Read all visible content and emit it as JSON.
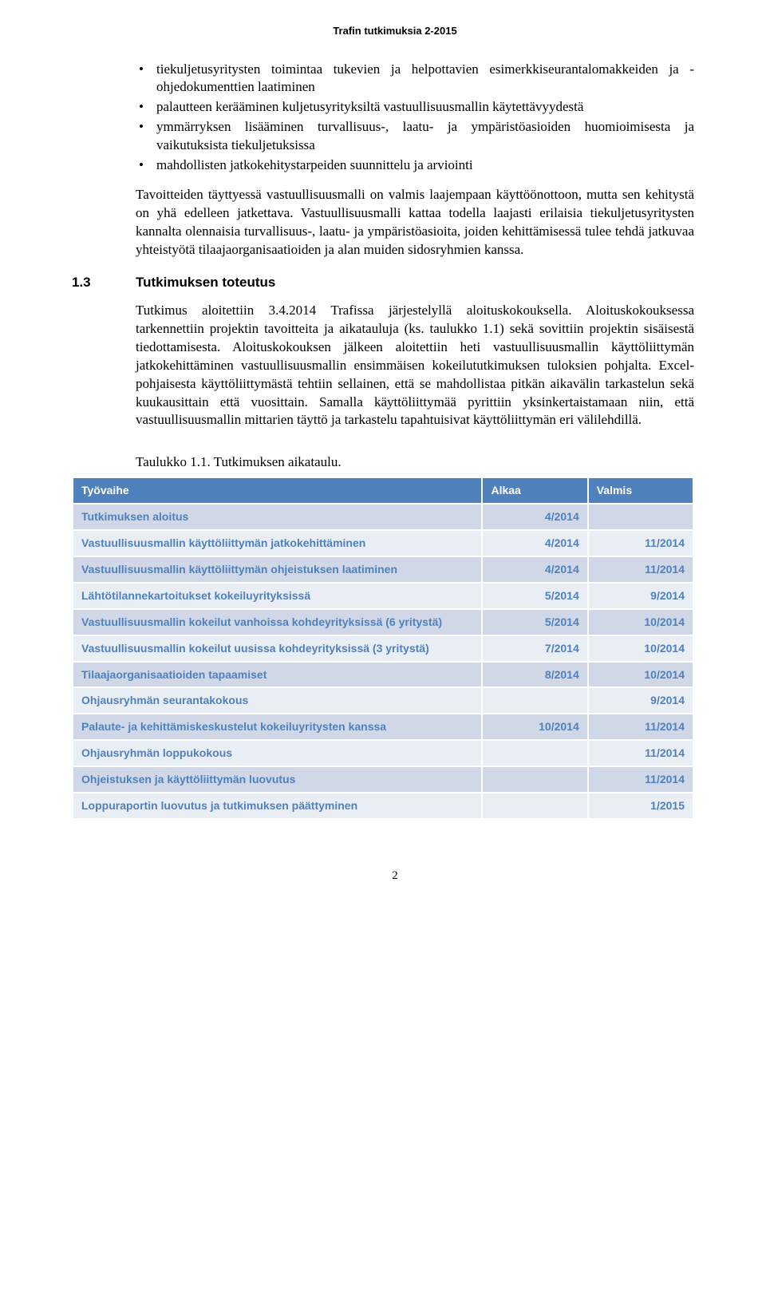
{
  "header": "Trafin tutkimuksia 2-2015",
  "bullets": [
    "tiekuljetusyritysten toimintaa tukevien ja helpottavien esimerkkiseurantalomakkeiden ja -ohjedokumenttien laatiminen",
    "palautteen kerääminen kuljetusyrityksiltä vastuullisuusmallin käytettävyydestä",
    "ymmärryksen lisääminen turvallisuus-, laatu- ja ympäristöasioiden huomioimisesta ja vaikutuksista tiekuljetuksissa",
    "mahdollisten jatkokehitystarpeiden suunnittelu ja arviointi"
  ],
  "para1": "Tavoitteiden täyttyessä vastuullisuusmalli on valmis laajempaan käyttöönottoon, mutta sen kehitystä on yhä edelleen jatkettava. Vastuullisuusmalli kattaa todella laajasti erilaisia tiekuljetusyritysten kannalta olennaisia turvallisuus-, laatu- ja ympäristöasioita, joiden kehittämisessä tulee tehdä jatkuvaa yhteistyötä tilaajaorganisaatioiden ja alan muiden sidosryhmien kanssa.",
  "section": {
    "num": "1.3",
    "title": "Tutkimuksen toteutus"
  },
  "para2": "Tutkimus aloitettiin 3.4.2014 Trafissa järjestelyllä aloituskokouksella. Aloituskokouksessa tarkennettiin projektin tavoitteita ja aikatauluja (ks. taulukko 1.1) sekä sovittiin projektin sisäisestä tiedottamisesta. Aloituskokouksen jälkeen aloitettiin heti vastuullisuusmallin käyttöliittymän jatkokehittäminen vastuullisuusmallin ensimmäisen kokeilututkimuksen tuloksien pohjalta. Excel-pohjaisesta käyttöliittymästä tehtiin sellainen, että se mahdollistaa pitkän aikavälin tarkastelun sekä kuukausittain että vuosittain. Samalla käyttöliittymää pyrittiin yksinkertaistamaan niin, että vastuullisuusmallin mittarien täyttö ja tarkastelu tapahtuisivat käyttöliittymän eri välilehdillä.",
  "tableCaption": "Taulukko 1.1. Tutkimuksen aikataulu.",
  "table": {
    "headerBg": "#4f81bd",
    "headerColor": "#ffffff",
    "stripeA": "#d0d8e8",
    "stripeB": "#e9edf4",
    "columns": [
      "Työvaihe",
      "Alkaa",
      "Valmis"
    ],
    "colWidths": [
      "66%",
      "17%",
      "17%"
    ],
    "rows": [
      {
        "cells": [
          "Tutkimuksen aloitus",
          "4/2014",
          ""
        ]
      },
      {
        "cells": [
          "Vastuullisuusmallin käyttöliittymän jatkokehittäminen",
          "4/2014",
          "11/2014"
        ]
      },
      {
        "cells": [
          "Vastuullisuusmallin käyttöliittymän ohjeistuksen laatiminen",
          "4/2014",
          "11/2014"
        ]
      },
      {
        "cells": [
          "Lähtötilannekartoitukset kokeiluyrityksissä",
          "5/2014",
          "9/2014"
        ]
      },
      {
        "cells": [
          "Vastuullisuusmallin kokeilut vanhoissa kohdeyrityksissä (6 yritystä)",
          "5/2014",
          "10/2014"
        ]
      },
      {
        "cells": [
          "Vastuullisuusmallin kokeilut uusissa kohdeyrityksissä (3 yritystä)",
          "7/2014",
          "10/2014"
        ]
      },
      {
        "cells": [
          "Tilaajaorganisaatioiden tapaamiset",
          "8/2014",
          "10/2014"
        ]
      },
      {
        "cells": [
          "Ohjausryhmän seurantakokous",
          "",
          "9/2014"
        ]
      },
      {
        "cells": [
          "Palaute- ja kehittämiskeskustelut kokeiluyritysten kanssa",
          "10/2014",
          "11/2014"
        ]
      },
      {
        "cells": [
          "Ohjausryhmän loppukokous",
          "",
          "11/2014"
        ]
      },
      {
        "cells": [
          "Ohjeistuksen ja käyttöliittymän luovutus",
          "",
          "11/2014"
        ]
      },
      {
        "cells": [
          "Loppuraportin luovutus ja tutkimuksen päättyminen",
          "",
          "1/2015"
        ]
      }
    ]
  },
  "pageNumber": "2"
}
